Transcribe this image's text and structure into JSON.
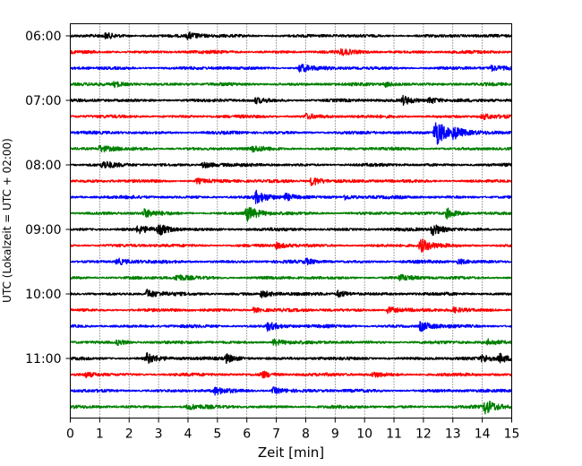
{
  "chart_data": {
    "type": "line",
    "title": "",
    "xlabel": "Zeit  [min]",
    "ylabel": "UTC (Lokalzeit = UTC + 02:00)",
    "xlim": [
      0,
      15
    ],
    "x_ticks": [
      0,
      1,
      2,
      3,
      4,
      5,
      6,
      7,
      8,
      9,
      10,
      11,
      12,
      13,
      14,
      15
    ],
    "y_tick_labels": [
      "06:00",
      "07:00",
      "08:00",
      "09:00",
      "10:00",
      "11:00"
    ],
    "grid": "vertical dotted",
    "trace_colors": [
      "#000000",
      "#ff0000",
      "#0000ff",
      "#008000"
    ],
    "series": [
      {
        "start": "06:00",
        "color": "#000000",
        "events": [
          [
            1.2,
            0.3
          ],
          [
            4.0,
            0.4
          ]
        ]
      },
      {
        "start": "06:15",
        "color": "#ff0000",
        "events": [
          [
            9.2,
            0.3
          ]
        ]
      },
      {
        "start": "06:30",
        "color": "#0000ff",
        "events": [
          [
            7.8,
            0.5
          ],
          [
            14.3,
            0.3
          ]
        ]
      },
      {
        "start": "06:45",
        "color": "#008000",
        "events": [
          [
            1.5,
            0.3
          ],
          [
            10.7,
            0.3
          ]
        ]
      },
      {
        "start": "07:00",
        "color": "#000000",
        "events": [
          [
            6.3,
            0.3
          ],
          [
            11.3,
            0.5
          ],
          [
            12.2,
            0.4
          ]
        ]
      },
      {
        "start": "07:15",
        "color": "#ff0000",
        "events": [
          [
            8.0,
            0.3
          ],
          [
            14.0,
            0.3
          ]
        ]
      },
      {
        "start": "07:30",
        "color": "#0000ff",
        "events": [
          [
            12.4,
            1.8
          ],
          [
            13.0,
            0.6
          ]
        ]
      },
      {
        "start": "07:45",
        "color": "#008000",
        "events": [
          [
            1.0,
            0.4
          ],
          [
            6.2,
            0.3
          ]
        ]
      },
      {
        "start": "08:00",
        "color": "#000000",
        "events": [
          [
            1.1,
            0.4
          ],
          [
            4.5,
            0.4
          ]
        ]
      },
      {
        "start": "08:15",
        "color": "#ff0000",
        "events": [
          [
            8.2,
            0.6
          ],
          [
            4.3,
            0.3
          ]
        ]
      },
      {
        "start": "08:30",
        "color": "#0000ff",
        "events": [
          [
            6.3,
            0.7
          ],
          [
            7.3,
            0.4
          ],
          [
            9.3,
            0.3
          ]
        ]
      },
      {
        "start": "08:45",
        "color": "#008000",
        "events": [
          [
            2.5,
            0.5
          ],
          [
            6.0,
            0.9
          ],
          [
            12.8,
            0.6
          ]
        ]
      },
      {
        "start": "09:00",
        "color": "#000000",
        "events": [
          [
            2.3,
            0.4
          ],
          [
            3.0,
            0.6
          ],
          [
            12.3,
            0.7
          ]
        ]
      },
      {
        "start": "09:15",
        "color": "#ff0000",
        "events": [
          [
            7.0,
            0.3
          ],
          [
            11.9,
            0.8
          ]
        ]
      },
      {
        "start": "09:30",
        "color": "#0000ff",
        "events": [
          [
            1.6,
            0.4
          ],
          [
            8.0,
            0.3
          ],
          [
            13.2,
            0.3
          ]
        ]
      },
      {
        "start": "09:45",
        "color": "#008000",
        "events": [
          [
            3.6,
            0.4
          ],
          [
            11.2,
            0.3
          ]
        ]
      },
      {
        "start": "10:00",
        "color": "#000000",
        "events": [
          [
            2.6,
            0.5
          ],
          [
            6.5,
            0.4
          ],
          [
            9.1,
            0.4
          ]
        ]
      },
      {
        "start": "10:15",
        "color": "#ff0000",
        "events": [
          [
            6.2,
            0.3
          ],
          [
            10.8,
            0.4
          ],
          [
            13.0,
            0.3
          ]
        ]
      },
      {
        "start": "10:30",
        "color": "#0000ff",
        "events": [
          [
            6.7,
            0.5
          ],
          [
            11.9,
            0.6
          ]
        ]
      },
      {
        "start": "10:45",
        "color": "#008000",
        "events": [
          [
            1.6,
            0.3
          ],
          [
            6.9,
            0.4
          ],
          [
            14.2,
            0.3
          ]
        ]
      },
      {
        "start": "11:00",
        "color": "#000000",
        "events": [
          [
            2.6,
            0.6
          ],
          [
            5.3,
            0.5
          ],
          [
            14.0,
            0.4
          ],
          [
            14.6,
            0.5
          ]
        ]
      },
      {
        "start": "11:15",
        "color": "#ff0000",
        "events": [
          [
            0.5,
            0.3
          ],
          [
            6.5,
            0.4
          ],
          [
            10.3,
            0.3
          ]
        ]
      },
      {
        "start": "11:30",
        "color": "#0000ff",
        "events": [
          [
            4.9,
            0.4
          ],
          [
            6.9,
            0.4
          ]
        ]
      },
      {
        "start": "11:45",
        "color": "#008000",
        "events": [
          [
            4.0,
            0.3
          ],
          [
            14.1,
            0.9
          ]
        ]
      }
    ]
  }
}
